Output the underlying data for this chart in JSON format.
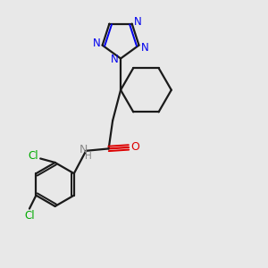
{
  "bg_color": "#e8e8e8",
  "bond_color": "#1a1a1a",
  "nitrogen_color": "#0000ee",
  "oxygen_color": "#dd0000",
  "chlorine_color": "#00aa00",
  "nh_color": "#888888",
  "figsize": [
    3.0,
    3.0
  ],
  "dpi": 100,
  "xlim": [
    0,
    10
  ],
  "ylim": [
    0,
    10
  ]
}
